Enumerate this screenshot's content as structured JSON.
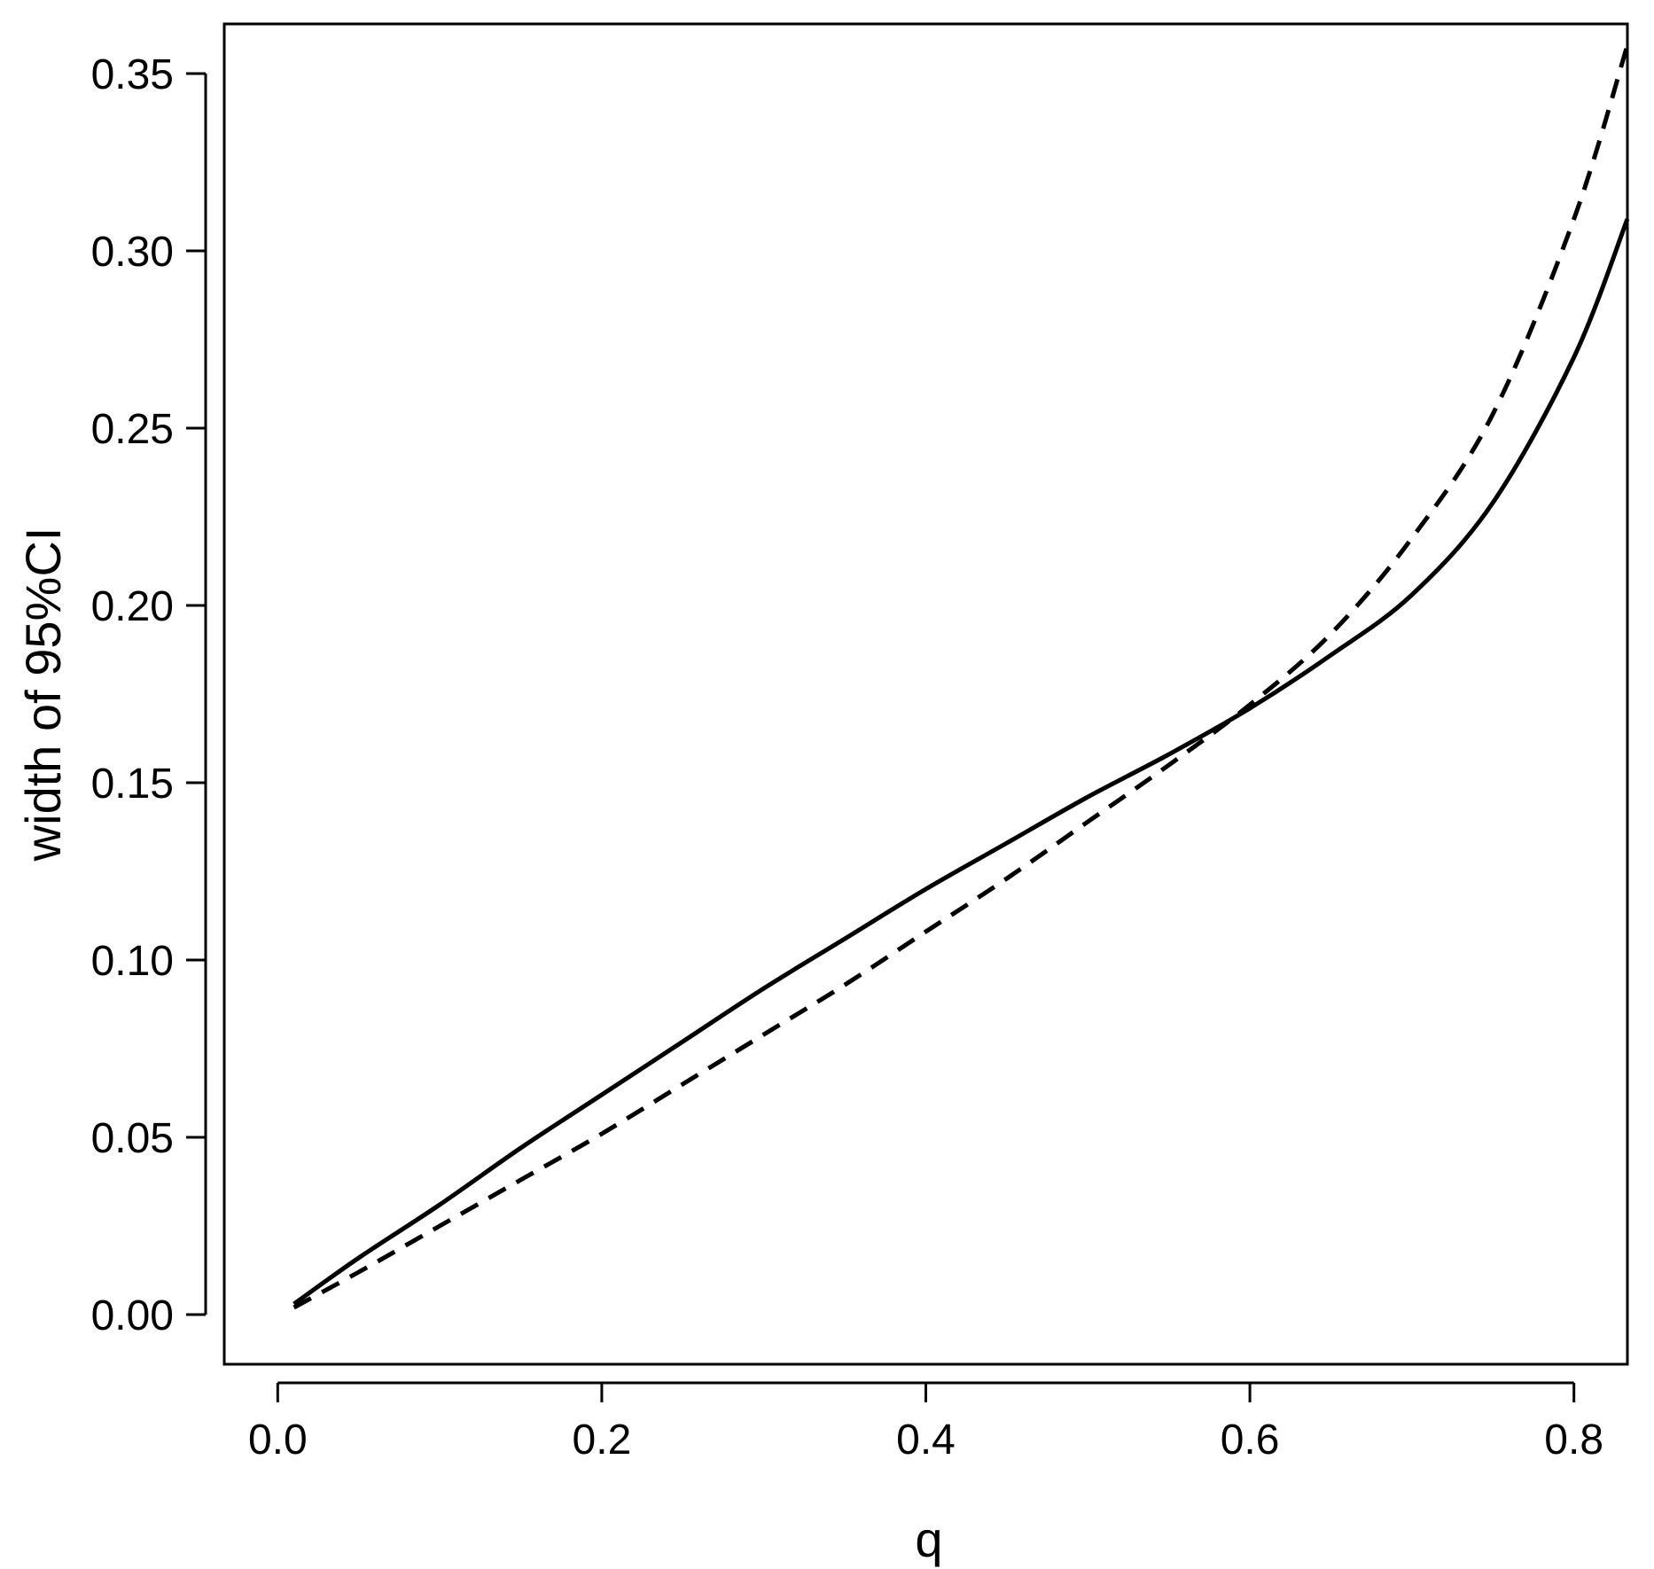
{
  "chart_data": {
    "type": "line",
    "xlabel": "q",
    "ylabel": "width of 95%CI",
    "xlim": [
      -0.033,
      0.833
    ],
    "ylim": [
      -0.014,
      0.364
    ],
    "xticks": [
      0.0,
      0.2,
      0.4,
      0.6,
      0.8
    ],
    "xtick_labels": [
      "0.0",
      "0.2",
      "0.4",
      "0.6",
      "0.8"
    ],
    "yticks": [
      0.0,
      0.05,
      0.1,
      0.15,
      0.2,
      0.25,
      0.3,
      0.35
    ],
    "ytick_labels": [
      "0.00",
      "0.05",
      "0.10",
      "0.15",
      "0.20",
      "0.25",
      "0.30",
      "0.35"
    ],
    "grid": false,
    "series": [
      {
        "style": "solid",
        "color": "#000000",
        "x": [
          0.01,
          0.05,
          0.1,
          0.15,
          0.2,
          0.25,
          0.3,
          0.35,
          0.4,
          0.45,
          0.5,
          0.55,
          0.6,
          0.65,
          0.7,
          0.75,
          0.8,
          0.833
        ],
        "y": [
          0.003,
          0.016,
          0.031,
          0.047,
          0.062,
          0.077,
          0.092,
          0.106,
          0.12,
          0.133,
          0.146,
          0.158,
          0.171,
          0.186,
          0.203,
          0.229,
          0.27,
          0.309
        ]
      },
      {
        "style": "dashed",
        "color": "#000000",
        "x": [
          0.01,
          0.05,
          0.1,
          0.15,
          0.2,
          0.25,
          0.3,
          0.35,
          0.4,
          0.45,
          0.5,
          0.55,
          0.6,
          0.65,
          0.7,
          0.75,
          0.8,
          0.833
        ],
        "y": [
          0.002,
          0.012,
          0.025,
          0.038,
          0.051,
          0.065,
          0.079,
          0.093,
          0.108,
          0.123,
          0.139,
          0.155,
          0.172,
          0.192,
          0.219,
          0.254,
          0.309,
          0.358
        ]
      }
    ]
  }
}
